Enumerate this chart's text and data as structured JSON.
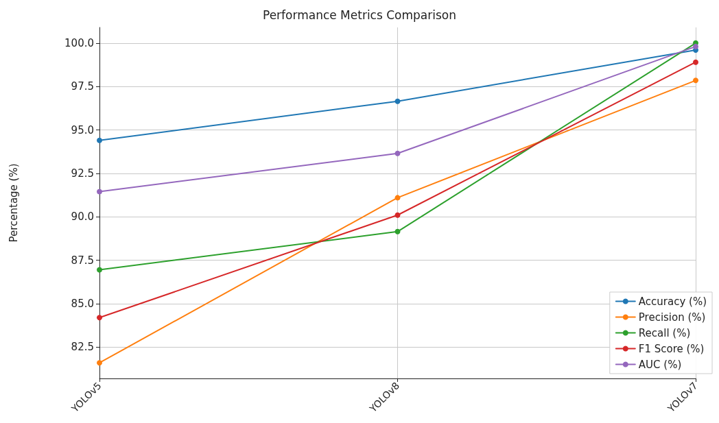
{
  "chart_data": {
    "type": "line",
    "title": "Performance Metrics Comparison",
    "ylabel": "Percentage (%)",
    "categories": [
      "YOLOv5",
      "YOLOv8",
      "YOLOv7"
    ],
    "series": [
      {
        "name": "Accuracy (%)",
        "color": "#1f77b4",
        "values": [
          94.4,
          96.65,
          99.6
        ]
      },
      {
        "name": "Precision (%)",
        "color": "#ff7f0e",
        "values": [
          81.6,
          91.1,
          97.85
        ]
      },
      {
        "name": "Recall (%)",
        "color": "#2ca02c",
        "values": [
          86.95,
          89.15,
          100.0
        ]
      },
      {
        "name": "F1 Score (%)",
        "color": "#d62728",
        "values": [
          84.2,
          90.1,
          98.9
        ]
      },
      {
        "name": "AUC (%)",
        "color": "#9467bd",
        "values": [
          91.45,
          93.65,
          99.8
        ]
      }
    ],
    "ylim": [
      80.7,
      100.9
    ],
    "yticks": [
      {
        "value": 82.5,
        "label": "82.5"
      },
      {
        "value": 85,
        "label": "85.0"
      },
      {
        "value": 87.5,
        "label": "87.5"
      },
      {
        "value": 90,
        "label": "90.0"
      },
      {
        "value": 92.5,
        "label": "92.5"
      },
      {
        "value": 95,
        "label": "95.0"
      },
      {
        "value": 97.5,
        "label": "97.5"
      },
      {
        "value": 100,
        "label": "100.0"
      }
    ],
    "grid": true,
    "legend": "bottom right",
    "marker": "circle",
    "line_style": "solid"
  }
}
